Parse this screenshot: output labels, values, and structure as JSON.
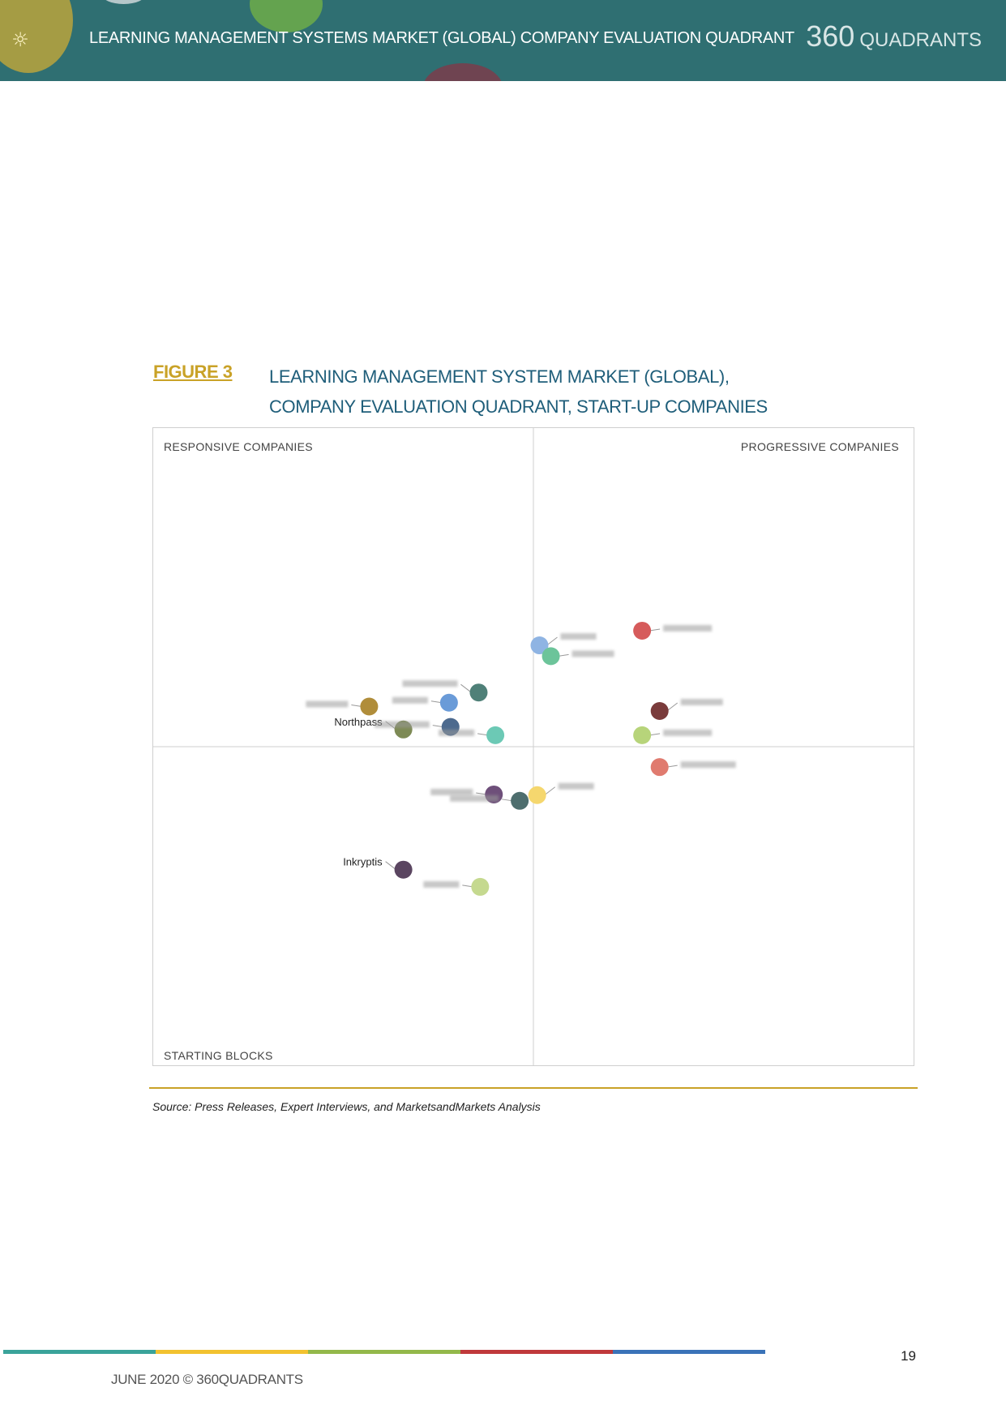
{
  "header": {
    "title": "LEARNING MANAGEMENT SYSTEMS MARKET (GLOBAL) COMPANY EVALUATION QUADRANT",
    "brand_number": "360",
    "brand_word": "QUADRANTS",
    "banner_color": "#2f6f72"
  },
  "figure": {
    "label": "FIGURE 3",
    "title_line1": "LEARNING MANAGEMENT SYSTEM MARKET (GLOBAL),",
    "title_line2": "COMPANY EVALUATION QUADRANT, START-UP COMPANIES"
  },
  "chart_data": {
    "type": "scatter",
    "title": "",
    "quadrants": {
      "top_left": "RESPONSIVE COMPANIES",
      "top_right": "PROGRESSIVE COMPANIES",
      "bottom_left": "STARTING BLOCKS",
      "bottom_right": ""
    },
    "xlim": [
      0,
      100
    ],
    "ylim": [
      0,
      100
    ],
    "x_divider": 50,
    "y_divider": 50,
    "axis_ticks": false,
    "points": [
      {
        "label": "",
        "x": 50.8,
        "y": 65.9,
        "color": "#8fb4e3",
        "label_blurred": true
      },
      {
        "label": "",
        "x": 52.3,
        "y": 64.2,
        "color": "#6cc49a",
        "label_blurred": true
      },
      {
        "label": "",
        "x": 64.3,
        "y": 68.2,
        "color": "#d65b5b",
        "label_blurred": true
      },
      {
        "label": "",
        "x": 42.8,
        "y": 58.5,
        "color": "#4f8078",
        "label_blurred": true
      },
      {
        "label": "",
        "x": 38.9,
        "y": 56.9,
        "color": "#6a9bd8",
        "label_blurred": true
      },
      {
        "label": "",
        "x": 28.4,
        "y": 56.3,
        "color": "#b08d3a",
        "label_blurred": true
      },
      {
        "label": "Northpass",
        "x": 32.9,
        "y": 52.7,
        "color": "#7d8a55",
        "label_blurred": false
      },
      {
        "label": "",
        "x": 39.1,
        "y": 53.1,
        "color": "#4d6a8e",
        "label_blurred": true
      },
      {
        "label": "",
        "x": 45.0,
        "y": 51.8,
        "color": "#6cc9b5",
        "label_blurred": true
      },
      {
        "label": "",
        "x": 66.6,
        "y": 55.6,
        "color": "#7a3b3b",
        "label_blurred": true
      },
      {
        "label": "",
        "x": 64.3,
        "y": 51.8,
        "color": "#b7d47a",
        "label_blurred": true
      },
      {
        "label": "",
        "x": 66.6,
        "y": 46.8,
        "color": "#e07b6f",
        "label_blurred": true
      },
      {
        "label": "",
        "x": 50.5,
        "y": 42.4,
        "color": "#f5d76e",
        "label_blurred": true
      },
      {
        "label": "",
        "x": 44.8,
        "y": 42.5,
        "color": "#6e4f7a",
        "label_blurred": true
      },
      {
        "label": "",
        "x": 48.2,
        "y": 41.5,
        "color": "#4e6e6e",
        "label_blurred": true
      },
      {
        "label": "Inkryptis",
        "x": 32.9,
        "y": 30.7,
        "color": "#5a4560",
        "label_blurred": false
      },
      {
        "label": "",
        "x": 43.0,
        "y": 28.0,
        "color": "#c5d98f",
        "label_blurred": true
      }
    ]
  },
  "source": "Source: Press Releases, Expert Interviews, and MarketsandMarkets Analysis",
  "footer": {
    "text": "JUNE 2020 © 360QUADRANTS",
    "page_number": "19",
    "bar_colors": [
      "#3aa39a",
      "#f2c230",
      "#93b84a",
      "#c0393b",
      "#3a73b8"
    ]
  }
}
